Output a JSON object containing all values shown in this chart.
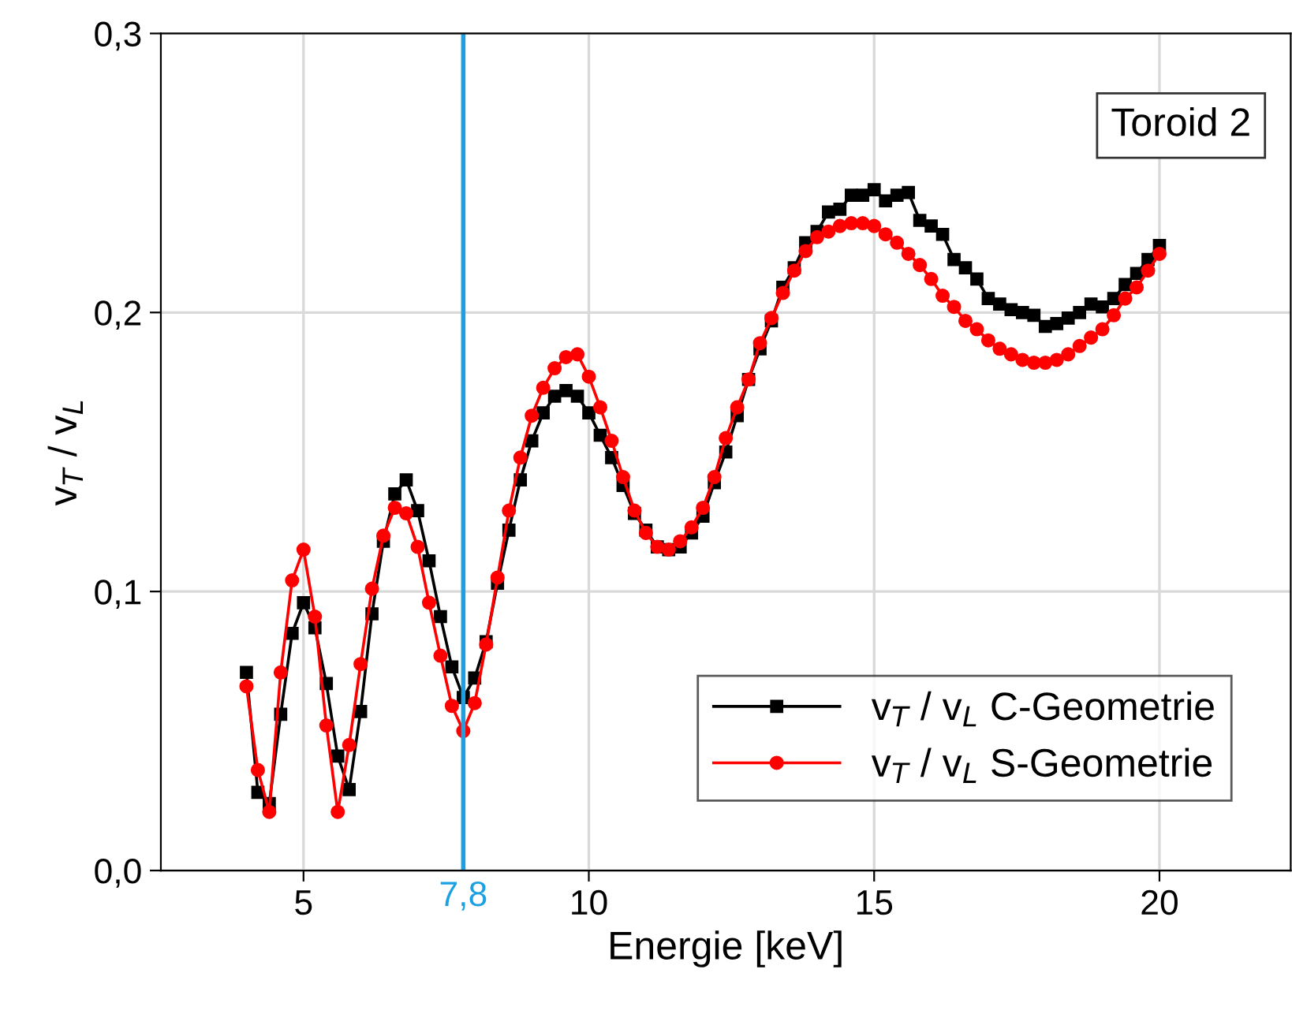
{
  "chart_data": {
    "type": "line",
    "xlabel": "Energie [keV]",
    "ylabel": "v$_{T}$ / v$_{L}$",
    "x": [
      4.0,
      4.2,
      4.4,
      4.6,
      4.8,
      5.0,
      5.2,
      5.4,
      5.6,
      5.8,
      6.0,
      6.2,
      6.4,
      6.6,
      6.8,
      7.0,
      7.2,
      7.4,
      7.6,
      7.8,
      8.0,
      8.2,
      8.4,
      8.6,
      8.8,
      9.0,
      9.2,
      9.4,
      9.6,
      9.8,
      10.0,
      10.2,
      10.4,
      10.6,
      10.8,
      11.0,
      11.2,
      11.4,
      11.6,
      11.8,
      12.0,
      12.2,
      12.4,
      12.6,
      12.8,
      13.0,
      13.2,
      13.4,
      13.6,
      13.8,
      14.0,
      14.2,
      14.4,
      14.6,
      14.8,
      15.0,
      15.2,
      15.4,
      15.6,
      15.8,
      16.0,
      16.2,
      16.4,
      16.6,
      16.8,
      17.0,
      17.2,
      17.4,
      17.6,
      17.8,
      18.0,
      18.2,
      18.4,
      18.6,
      18.8,
      19.0,
      19.2,
      19.4,
      19.6,
      19.8,
      20.0
    ],
    "series": [
      {
        "name": "v$_{T}$ / v$_{L}$ C-Geometrie",
        "color": "#000000",
        "marker": "square",
        "values": [
          0.071,
          0.028,
          0.024,
          0.056,
          0.085,
          0.096,
          0.087,
          0.067,
          0.041,
          0.029,
          0.057,
          0.092,
          0.118,
          0.135,
          0.14,
          0.129,
          0.111,
          0.091,
          0.073,
          0.062,
          0.069,
          0.082,
          0.103,
          0.122,
          0.14,
          0.154,
          0.164,
          0.17,
          0.172,
          0.17,
          0.164,
          0.156,
          0.148,
          0.138,
          0.128,
          0.122,
          0.116,
          0.115,
          0.116,
          0.121,
          0.127,
          0.139,
          0.15,
          0.163,
          0.176,
          0.187,
          0.197,
          0.209,
          0.216,
          0.225,
          0.229,
          0.236,
          0.237,
          0.242,
          0.242,
          0.244,
          0.24,
          0.242,
          0.243,
          0.233,
          0.231,
          0.228,
          0.219,
          0.216,
          0.212,
          0.205,
          0.203,
          0.201,
          0.2,
          0.199,
          0.195,
          0.196,
          0.198,
          0.2,
          0.203,
          0.202,
          0.205,
          0.21,
          0.214,
          0.219,
          0.224
        ]
      },
      {
        "name": "v$_{T}$ / v$_{L}$ S-Geometrie",
        "color": "#ff0000",
        "marker": "circle",
        "values": [
          0.066,
          0.036,
          0.021,
          0.071,
          0.104,
          0.115,
          0.091,
          0.052,
          0.021,
          0.045,
          0.074,
          0.101,
          0.12,
          0.13,
          0.128,
          0.116,
          0.096,
          0.077,
          0.059,
          0.05,
          0.06,
          0.081,
          0.105,
          0.129,
          0.148,
          0.163,
          0.173,
          0.18,
          0.184,
          0.185,
          0.177,
          0.166,
          0.154,
          0.141,
          0.129,
          0.121,
          0.116,
          0.115,
          0.118,
          0.123,
          0.13,
          0.141,
          0.155,
          0.166,
          0.176,
          0.189,
          0.198,
          0.207,
          0.215,
          0.222,
          0.227,
          0.229,
          0.231,
          0.232,
          0.232,
          0.231,
          0.228,
          0.225,
          0.221,
          0.217,
          0.212,
          0.206,
          0.202,
          0.197,
          0.194,
          0.19,
          0.187,
          0.185,
          0.183,
          0.182,
          0.182,
          0.183,
          0.185,
          0.188,
          0.191,
          0.194,
          0.199,
          0.205,
          0.209,
          0.215,
          0.221
        ]
      }
    ],
    "xlim": [
      2.5,
      22.3
    ],
    "xticks": [
      5,
      10,
      15,
      20
    ],
    "ylim": [
      0,
      0.3
    ],
    "yticks": [
      {
        "value": 0,
        "label": "0,0"
      },
      {
        "value": 0.1,
        "label": "0,1"
      },
      {
        "value": 0.2,
        "label": "0,2"
      },
      {
        "value": 0.3,
        "label": "0,3"
      }
    ],
    "ref_lines": [
      {
        "axis": "x",
        "value": 7.8,
        "label": "7,8",
        "color": "#1ba1e2"
      }
    ],
    "annotations": [
      "Toroid 2"
    ],
    "grid": true,
    "legend": "bottom right",
    "line_style": "solid"
  }
}
